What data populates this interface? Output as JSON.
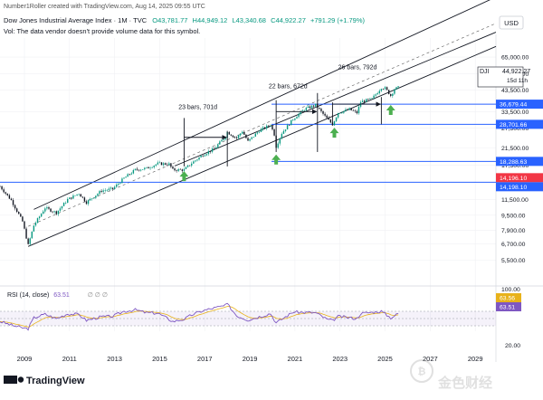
{
  "header": {
    "created_by": "Number1Roller created with TradingView.com, Aug 14, 2025 09:55 UTC",
    "symbol": "Dow Jones Industrial Average Index · 1M · TVC",
    "ohlc": [
      {
        "k": "O",
        "v": "43,781.77"
      },
      {
        "k": "H",
        "v": "44,949.12"
      },
      {
        "k": "L",
        "v": "43,340.68"
      },
      {
        "k": "C",
        "v": "44,922.27"
      }
    ],
    "change": "+791.29 (+1.79%)",
    "note": "Vol: The data vendor doesn't provide volume data for this symbol."
  },
  "currency_button": "USD",
  "price_axis": {
    "ticks": [
      "65,000.00",
      "53,000.00",
      "43,500.00",
      "33,500.00",
      "27,500.00",
      "21,500.00",
      "17,500.00",
      "11,500.00",
      "9,500.00",
      "7,900.00",
      "6,700.00",
      "5,500.00"
    ]
  },
  "dji_tag": {
    "symbol": "DJI",
    "price": "44,922.27",
    "countdown": "15d 11h"
  },
  "price_labels": [
    {
      "text": "36,679.44",
      "color": "#2962ff"
    },
    {
      "text": "28,701.66",
      "color": "#2962ff"
    },
    {
      "text": "18,288.63",
      "color": "#2962ff"
    },
    {
      "text": "14,196.10",
      "color": "#f23645"
    },
    {
      "text": "14,198.10",
      "color": "#2962ff"
    }
  ],
  "annotations": [
    "23 bars, 701d",
    "22 bars, 672d",
    "26 bars, 792d"
  ],
  "rsi": {
    "label": "RSI (14, close)",
    "value": "63.51",
    "placeholders": "∅ ∅ ∅",
    "ticks": [
      "100.00",
      "20.00"
    ],
    "tags": [
      {
        "text": "63.56",
        "color": "#e8b21a"
      },
      {
        "text": "63.51",
        "color": "#7e57c2"
      }
    ]
  },
  "time_axis": [
    "2009",
    "2011",
    "2013",
    "2015",
    "2017",
    "2019",
    "2021",
    "2023",
    "2025",
    "2027",
    "2029"
  ],
  "footer": {
    "brand": "TradingView",
    "watermark": "金色财经"
  },
  "colors": {
    "up": "#089981",
    "down": "#131722",
    "blue": "#2962ff",
    "red": "#f23645",
    "rsi": "#7e57c2",
    "rsi_ma": "#e8b21a",
    "arrow": "#4caf50"
  },
  "chart_data": {
    "type": "candlestick",
    "title": "Dow Jones Industrial Average Index · 1M · TVC",
    "interval": "1M",
    "y_scale": "log",
    "x_range": [
      "2007-12",
      "2029-12"
    ],
    "y_range": [
      4200,
      82000
    ],
    "series": [
      {
        "date": "2007-12",
        "close": 13500
      },
      {
        "date": "2008-06",
        "close": 11400
      },
      {
        "date": "2008-12",
        "close": 8800
      },
      {
        "date": "2009-03",
        "close": 6600
      },
      {
        "date": "2009-06",
        "close": 8400
      },
      {
        "date": "2009-12",
        "close": 10400
      },
      {
        "date": "2010-06",
        "close": 9800
      },
      {
        "date": "2010-12",
        "close": 11500
      },
      {
        "date": "2011-06",
        "close": 12400
      },
      {
        "date": "2011-10",
        "close": 11100
      },
      {
        "date": "2012-06",
        "close": 12800
      },
      {
        "date": "2012-12",
        "close": 13100
      },
      {
        "date": "2013-06",
        "close": 14900
      },
      {
        "date": "2013-12",
        "close": 16500
      },
      {
        "date": "2014-06",
        "close": 16800
      },
      {
        "date": "2014-12",
        "close": 17800
      },
      {
        "date": "2015-06",
        "close": 17700
      },
      {
        "date": "2015-08",
        "close": 16500
      },
      {
        "date": "2016-02",
        "close": 16500
      },
      {
        "date": "2016-06",
        "close": 17900
      },
      {
        "date": "2016-12",
        "close": 19800
      },
      {
        "date": "2017-06",
        "close": 21300
      },
      {
        "date": "2017-12",
        "close": 24700
      },
      {
        "date": "2018-01",
        "close": 26100
      },
      {
        "date": "2018-06",
        "close": 24300
      },
      {
        "date": "2018-09",
        "close": 26400
      },
      {
        "date": "2018-12",
        "close": 23300
      },
      {
        "date": "2019-06",
        "close": 26600
      },
      {
        "date": "2019-12",
        "close": 28500
      },
      {
        "date": "2020-02",
        "close": 25400
      },
      {
        "date": "2020-03",
        "close": 21900
      },
      {
        "date": "2020-06",
        "close": 25800
      },
      {
        "date": "2020-12",
        "close": 30600
      },
      {
        "date": "2021-06",
        "close": 34500
      },
      {
        "date": "2021-12",
        "close": 36300
      },
      {
        "date": "2022-06",
        "close": 30800
      },
      {
        "date": "2022-09",
        "close": 28700
      },
      {
        "date": "2022-12",
        "close": 33100
      },
      {
        "date": "2023-06",
        "close": 34400
      },
      {
        "date": "2023-10",
        "close": 33000
      },
      {
        "date": "2023-12",
        "close": 37700
      },
      {
        "date": "2024-06",
        "close": 39100
      },
      {
        "date": "2024-11",
        "close": 44900
      },
      {
        "date": "2025-01",
        "close": 44500
      },
      {
        "date": "2025-03",
        "close": 42000
      },
      {
        "date": "2025-04",
        "close": 40700
      },
      {
        "date": "2025-06",
        "close": 44100
      },
      {
        "date": "2025-08",
        "close": 44922
      }
    ],
    "horizontal_levels": [
      {
        "value": 36679.44,
        "color": "#2962ff"
      },
      {
        "value": 28701.66,
        "color": "#2962ff"
      },
      {
        "value": 18288.63,
        "color": "#2962ff"
      },
      {
        "value": 14198.1,
        "color": "#2962ff"
      }
    ],
    "rsi_series": {
      "name": "RSI (14, close)",
      "y_range": [
        15,
        100
      ],
      "points": [
        [
          "2007-12",
          42
        ],
        [
          "2008-06",
          32
        ],
        [
          "2008-12",
          24
        ],
        [
          "2009-03",
          22
        ],
        [
          "2009-06",
          52
        ],
        [
          "2009-12",
          62
        ],
        [
          "2010-06",
          50
        ],
        [
          "2010-12",
          63
        ],
        [
          "2011-06",
          61
        ],
        [
          "2011-10",
          45
        ],
        [
          "2012-06",
          55
        ],
        [
          "2012-12",
          56
        ],
        [
          "2013-06",
          70
        ],
        [
          "2013-12",
          74
        ],
        [
          "2014-06",
          66
        ],
        [
          "2014-12",
          65
        ],
        [
          "2015-08",
          42
        ],
        [
          "2016-02",
          48
        ],
        [
          "2016-06",
          60
        ],
        [
          "2016-12",
          72
        ],
        [
          "2017-12",
          86
        ],
        [
          "2018-01",
          90
        ],
        [
          "2018-06",
          58
        ],
        [
          "2018-12",
          46
        ],
        [
          "2019-12",
          64
        ],
        [
          "2020-03",
          38
        ],
        [
          "2020-12",
          68
        ],
        [
          "2021-12",
          66
        ],
        [
          "2022-06",
          48
        ],
        [
          "2022-09",
          44
        ],
        [
          "2022-12",
          56
        ],
        [
          "2023-10",
          50
        ],
        [
          "2023-12",
          64
        ],
        [
          "2024-11",
          70
        ],
        [
          "2025-04",
          52
        ],
        [
          "2025-08",
          63.51
        ]
      ]
    }
  }
}
